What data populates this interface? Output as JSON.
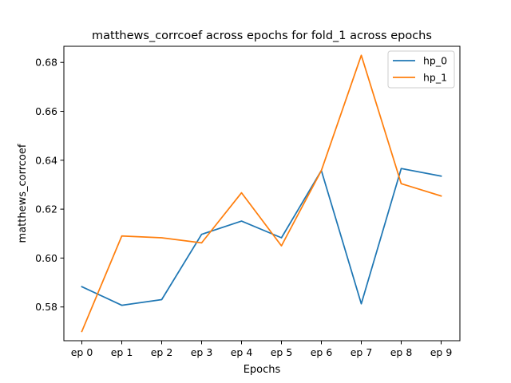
{
  "chart_data": {
    "type": "line",
    "title": "matthews_corrcoef across epochs for fold_1 across epochs",
    "xlabel": "Epochs",
    "ylabel": "matthews_corrcoef",
    "categories": [
      "ep 0",
      "ep 1",
      "ep 2",
      "ep 3",
      "ep 4",
      "ep 5",
      "ep 6",
      "ep 7",
      "ep 8",
      "ep 9"
    ],
    "yticks": [
      "0.58",
      "0.60",
      "0.62",
      "0.64",
      "0.66",
      "0.68"
    ],
    "ylim": [
      0.5662,
      0.6866
    ],
    "grid": false,
    "legend_position": "upper right",
    "series": [
      {
        "name": "hp_0",
        "color": "#1f77b4",
        "values": [
          0.5883,
          0.5807,
          0.583,
          0.6097,
          0.6151,
          0.6083,
          0.6358,
          0.5813,
          0.6366,
          0.6335
        ]
      },
      {
        "name": "hp_1",
        "color": "#ff7f0e",
        "values": [
          0.57,
          0.609,
          0.6083,
          0.6062,
          0.6267,
          0.605,
          0.6358,
          0.6829,
          0.6304,
          0.6254
        ]
      }
    ]
  }
}
